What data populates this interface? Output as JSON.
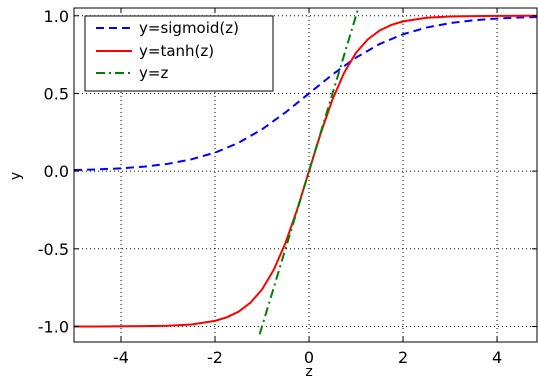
{
  "chart_data": {
    "type": "line",
    "xlabel": "z",
    "ylabel": "y",
    "xlim": [
      -5,
      4.85
    ],
    "ylim": [
      -1.1,
      1.05
    ],
    "xticks": [
      -4,
      -2,
      0,
      2,
      4
    ],
    "xtick_labels": [
      "-4",
      "-2",
      "0",
      "2",
      "4"
    ],
    "yticks": [
      -1.0,
      -0.5,
      0.0,
      0.5,
      1.0
    ],
    "ytick_labels": [
      "-1.0",
      "-0.5",
      "0.0",
      "0.5",
      "1.0"
    ],
    "grid": true,
    "legend_position": "top-left",
    "series": [
      {
        "name": "y=sigmoid(z)",
        "style": "dashed",
        "color": "#0000ff",
        "x": [
          -5,
          -4.5,
          -4,
          -3.5,
          -3,
          -2.5,
          -2,
          -1.5,
          -1,
          -0.5,
          0,
          0.5,
          1,
          1.5,
          2,
          2.5,
          3,
          3.5,
          4,
          4.5,
          4.85
        ],
        "y": [
          0.007,
          0.011,
          0.018,
          0.029,
          0.047,
          0.076,
          0.119,
          0.182,
          0.269,
          0.378,
          0.5,
          0.622,
          0.731,
          0.818,
          0.881,
          0.924,
          0.953,
          0.971,
          0.982,
          0.989,
          0.992
        ]
      },
      {
        "name": "y=tanh(z)",
        "style": "solid",
        "color": "#ff0000",
        "x": [
          -5,
          -4.5,
          -4,
          -3.5,
          -3,
          -2.5,
          -2,
          -1.75,
          -1.5,
          -1.25,
          -1,
          -0.75,
          -0.5,
          -0.25,
          0,
          0.25,
          0.5,
          0.75,
          1,
          1.25,
          1.5,
          1.75,
          2,
          2.5,
          3,
          3.5,
          4,
          4.5,
          4.85
        ],
        "y": [
          -1.0,
          -1.0,
          -0.999,
          -0.998,
          -0.995,
          -0.987,
          -0.964,
          -0.941,
          -0.905,
          -0.848,
          -0.762,
          -0.635,
          -0.462,
          -0.245,
          0.0,
          0.245,
          0.462,
          0.635,
          0.762,
          0.848,
          0.905,
          0.941,
          0.964,
          0.987,
          0.995,
          0.998,
          0.999,
          1.0,
          1.0
        ]
      },
      {
        "name": "y=z",
        "style": "dashdot",
        "color": "#008000",
        "x": [
          -1.05,
          1.05
        ],
        "y": [
          -1.05,
          1.05
        ]
      }
    ]
  }
}
